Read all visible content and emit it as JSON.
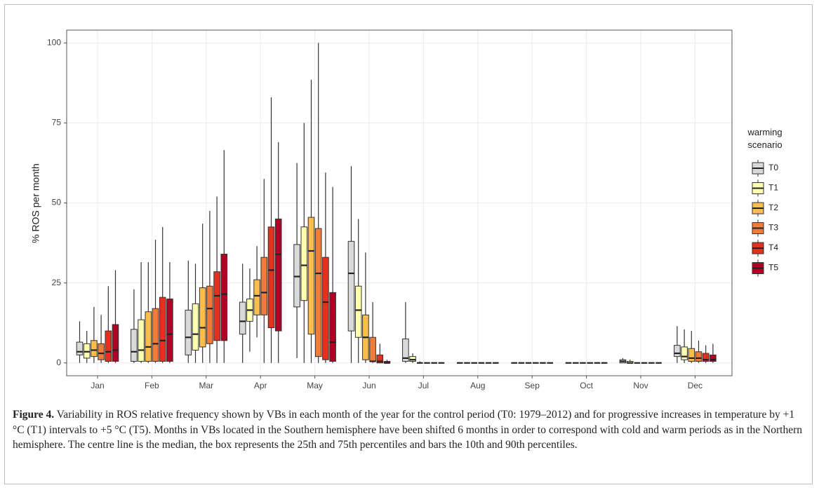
{
  "chart_data": {
    "type": "box",
    "ylabel": "% ROS per month",
    "legend_title": "warming scenario",
    "categories": [
      "Jan",
      "Feb",
      "Mar",
      "Apr",
      "May",
      "Jun",
      "Jul",
      "Aug",
      "Sep",
      "Oct",
      "Nov",
      "Dec"
    ],
    "ylim": [
      -4,
      104
    ],
    "yticks": [
      0,
      25,
      50,
      75,
      100
    ],
    "grid": true,
    "series": [
      {
        "name": "T0",
        "color": "#d9d9d9",
        "stats": [
          [
            0,
            2.5,
            3.5,
            6.5,
            13
          ],
          [
            0,
            0.5,
            3.5,
            10.5,
            23
          ],
          [
            0,
            2.5,
            8,
            16.5,
            32
          ],
          [
            0,
            9,
            13,
            19,
            31
          ],
          [
            1.5,
            17.5,
            27,
            37,
            62.5
          ],
          [
            0,
            10,
            28,
            38,
            61.5
          ],
          [
            0,
            0.5,
            1.5,
            7.5,
            19
          ],
          [
            0,
            0,
            0,
            0,
            0
          ],
          [
            0,
            0,
            0,
            0,
            0
          ],
          [
            0,
            0,
            0,
            0,
            0
          ],
          [
            0,
            0,
            0.5,
            1,
            1.5
          ],
          [
            0,
            2,
            3,
            5.5,
            11.5
          ]
        ]
      },
      {
        "name": "T1",
        "color": "#ffffb2",
        "stats": [
          [
            0,
            1.5,
            3.5,
            6,
            10
          ],
          [
            0,
            0.5,
            4,
            13.5,
            31.5
          ],
          [
            0,
            4,
            9,
            18.5,
            31
          ],
          [
            3.5,
            13,
            16.5,
            20,
            29.5
          ],
          [
            0,
            19.5,
            30.5,
            42.5,
            75
          ],
          [
            0,
            8,
            16.5,
            24,
            45
          ],
          [
            0,
            0.5,
            1,
            2,
            3
          ],
          [
            0,
            0,
            0,
            0,
            0
          ],
          [
            0,
            0,
            0,
            0,
            0
          ],
          [
            0,
            0,
            0,
            0,
            0
          ],
          [
            0,
            0,
            0,
            0.5,
            1
          ],
          [
            0,
            1,
            2,
            5,
            10.5
          ]
        ]
      },
      {
        "name": "T2",
        "color": "#fbbd4e",
        "stats": [
          [
            0,
            2,
            4,
            7,
            17.5
          ],
          [
            0,
            0.5,
            5,
            16,
            31.5
          ],
          [
            0,
            5,
            11,
            23.5,
            43.5
          ],
          [
            8,
            15,
            21,
            26,
            36.5
          ],
          [
            0,
            9,
            35,
            45.5,
            88.5
          ],
          [
            0,
            1,
            8,
            15,
            34.5
          ],
          [
            0,
            0,
            0,
            0,
            0.5
          ],
          [
            0,
            0,
            0,
            0,
            0
          ],
          [
            0,
            0,
            0,
            0,
            0
          ],
          [
            0,
            0,
            0,
            0,
            0
          ],
          [
            0,
            0,
            0,
            0,
            0
          ],
          [
            0,
            0.5,
            1.5,
            4.5,
            10
          ]
        ]
      },
      {
        "name": "T3",
        "color": "#f17c37",
        "stats": [
          [
            0,
            1,
            3,
            6,
            15
          ],
          [
            0,
            0.5,
            6,
            17,
            38.5
          ],
          [
            0,
            6,
            17,
            24,
            47.5
          ],
          [
            0,
            15,
            22,
            33,
            57.5
          ],
          [
            0,
            2,
            28,
            42,
            100
          ],
          [
            0,
            0.5,
            0.5,
            8,
            19
          ],
          [
            0,
            0,
            0,
            0,
            0
          ],
          [
            0,
            0,
            0,
            0,
            0
          ],
          [
            0,
            0,
            0,
            0,
            0
          ],
          [
            0,
            0,
            0,
            0,
            0
          ],
          [
            0,
            0,
            0,
            0,
            0
          ],
          [
            0,
            0.5,
            1.5,
            3.5,
            7
          ]
        ]
      },
      {
        "name": "T4",
        "color": "#e0321f",
        "stats": [
          [
            0,
            0.5,
            3.5,
            10,
            24
          ],
          [
            0,
            0.5,
            7,
            20.5,
            42.5
          ],
          [
            0,
            7,
            21,
            28.5,
            52
          ],
          [
            0,
            11,
            29,
            42.5,
            83
          ],
          [
            0,
            1,
            19,
            33,
            59.5
          ],
          [
            0,
            0,
            0.5,
            2.5,
            6
          ],
          [
            0,
            0,
            0,
            0,
            0
          ],
          [
            0,
            0,
            0,
            0,
            0
          ],
          [
            0,
            0,
            0,
            0,
            0
          ],
          [
            0,
            0,
            0,
            0,
            0
          ],
          [
            0,
            0,
            0,
            0,
            0
          ],
          [
            0,
            0.5,
            1,
            3,
            5.5
          ]
        ]
      },
      {
        "name": "T5",
        "color": "#b10026",
        "stats": [
          [
            0,
            0.5,
            4,
            12,
            29
          ],
          [
            0,
            0.5,
            9,
            20,
            31.5
          ],
          [
            0,
            7,
            21.5,
            34,
            66.5
          ],
          [
            0,
            10,
            34,
            45,
            69
          ],
          [
            0,
            0.5,
            6.5,
            22,
            55
          ],
          [
            0,
            0,
            0,
            0.5,
            1
          ],
          [
            0,
            0,
            0,
            0,
            0
          ],
          [
            0,
            0,
            0,
            0,
            0
          ],
          [
            0,
            0,
            0,
            0,
            0
          ],
          [
            0,
            0,
            0,
            0,
            0
          ],
          [
            0,
            0,
            0,
            0,
            0
          ],
          [
            0,
            0.5,
            1,
            2.5,
            6
          ]
        ]
      }
    ]
  },
  "caption": {
    "label": "Figure 4.",
    "text": "Variability in ROS relative frequency shown by VBs in each month of the year for the control period (T0: 1979–2012) and for progressive increases in temperature by +1 °C (T1) intervals to +5 °C (T5). Months in VBs located in the Southern hemisphere have been shifted 6 months in order to correspond with cold and warm periods as in the Northern hemisphere. The centre line is the median, the box represents the 25th and 75th percentiles and bars the 10th and 90th percentiles."
  }
}
